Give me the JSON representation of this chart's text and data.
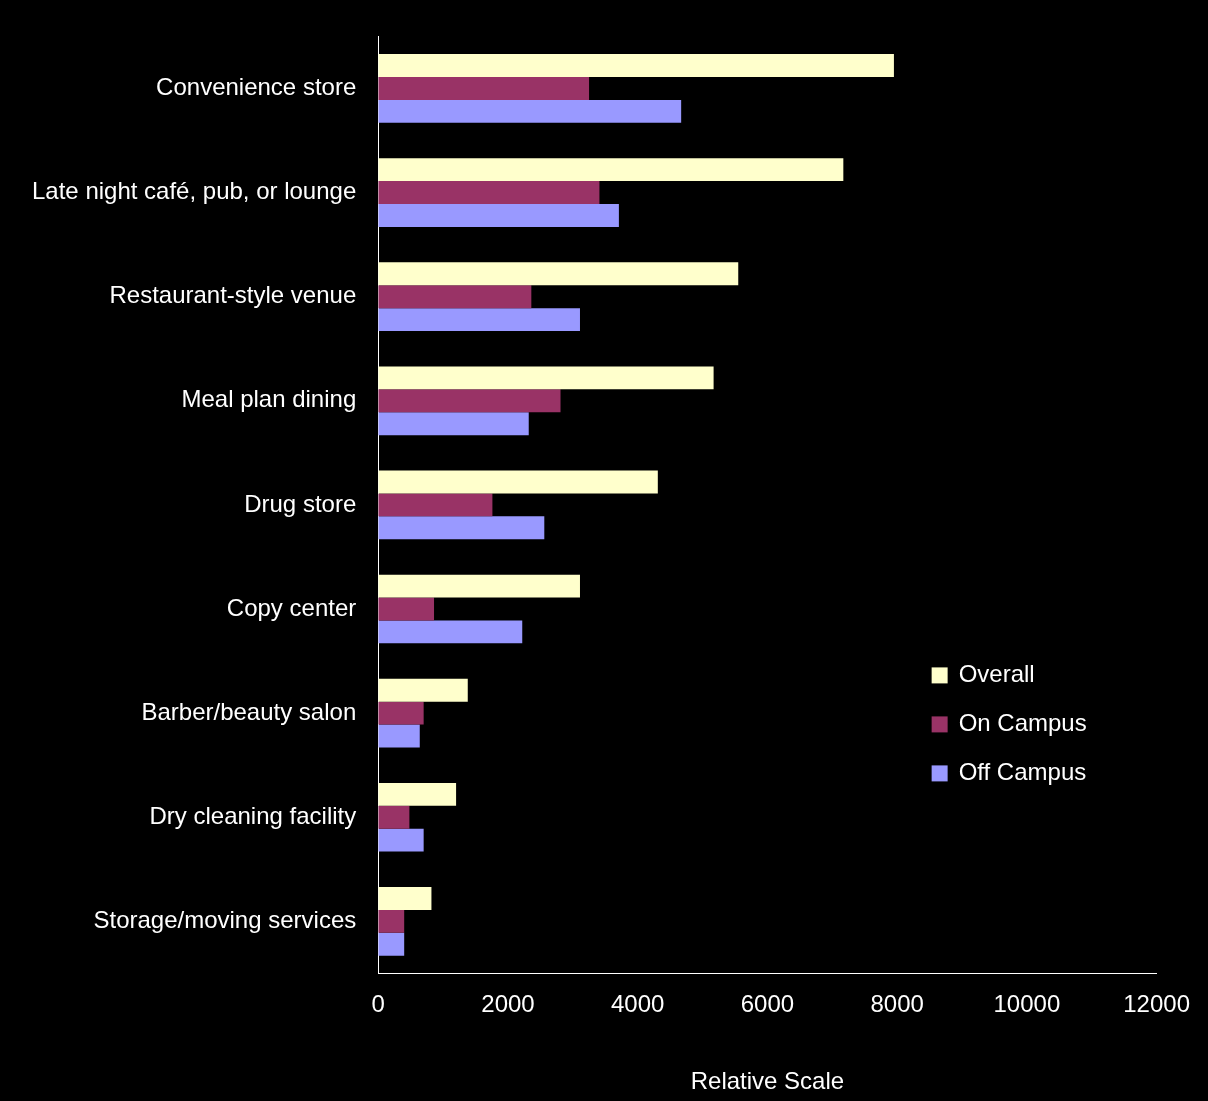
{
  "chart_data": {
    "type": "bar",
    "orientation": "horizontal",
    "xlabel": "Relative Scale",
    "categories": [
      "Convenience store",
      "Late night café, pub, or lounge",
      "Restaurant-style venue",
      "Meal plan dining",
      "Drug store",
      "Copy center",
      "Barber/beauty salon",
      "Dry cleaning facility",
      "Storage/moving services"
    ],
    "series": [
      {
        "name": "Overall",
        "color": "#ffffcc",
        "values": [
          7950,
          7170,
          5550,
          5170,
          4310,
          3110,
          1380,
          1200,
          820
        ]
      },
      {
        "name": "On Campus",
        "color": "#993366",
        "values": [
          3250,
          3410,
          2360,
          2810,
          1760,
          860,
          700,
          480,
          400
        ]
      },
      {
        "name": "Off Campus",
        "color": "#9999ff",
        "values": [
          4670,
          3710,
          3110,
          2320,
          2560,
          2220,
          640,
          700,
          400
        ]
      }
    ],
    "xlim": [
      0,
      12000
    ],
    "xticks": [
      0,
      2000,
      4000,
      6000,
      8000,
      10000,
      12000
    ],
    "grid": false,
    "legend": "bottom right"
  }
}
